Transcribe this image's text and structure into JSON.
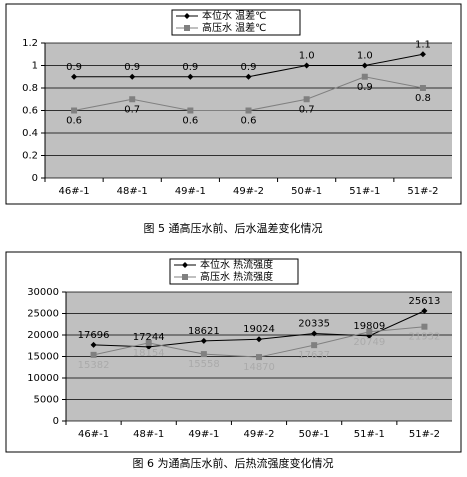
{
  "chart_data": [
    {
      "type": "line",
      "caption": "图 5  通高压水前、后水温差变化情况",
      "categories": [
        "46#-1",
        "48#-1",
        "49#-1",
        "49#-2",
        "50#-1",
        "51#-1",
        "51#-2"
      ],
      "series": [
        {
          "name": "本位水  温差℃",
          "color": "#000000",
          "values": [
            0.9,
            0.9,
            0.9,
            0.9,
            1.0,
            1.0,
            1.1
          ],
          "value_labels": [
            "0.9",
            "0.9",
            "0.9",
            "0.9",
            "1.0",
            "1.0",
            "1.1"
          ]
        },
        {
          "name": "高压水  温差℃",
          "color": "#808080",
          "values": [
            0.6,
            0.7,
            0.6,
            0.6,
            0.7,
            0.9,
            0.8
          ]
        }
      ],
      "ylim": [
        0,
        1.2
      ],
      "yticks": [
        0,
        0.2,
        0.4,
        0.6,
        0.8,
        1,
        1.2
      ],
      "grid": true
    },
    {
      "type": "line",
      "caption": "图 6   为通高压水前、后热流强度变化情况",
      "categories": [
        "46#-1",
        "48#-1",
        "49#-1",
        "49#-2",
        "50#-1",
        "51#-1",
        "51#-2"
      ],
      "series": [
        {
          "name": "本位水  热流强度",
          "color": "#000000",
          "values": [
            17696,
            17244,
            18621,
            19024,
            20335,
            19809,
            25613
          ]
        },
        {
          "name": "高压水  热流强度",
          "color": "#808080",
          "values": [
            15382,
            18154,
            15558,
            14870,
            17637,
            20749,
            21932
          ]
        }
      ],
      "ylim": [
        0,
        30000
      ],
      "yticks": [
        0,
        5000,
        10000,
        15000,
        20000,
        25000,
        30000
      ],
      "grid": true
    }
  ]
}
